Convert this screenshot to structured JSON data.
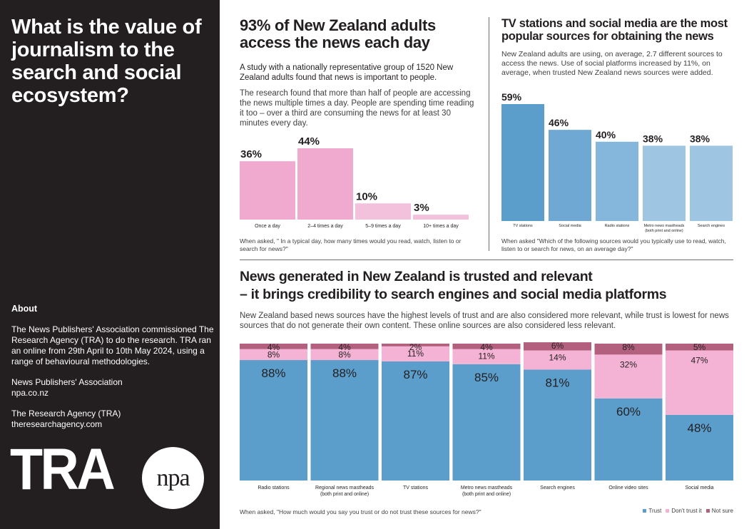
{
  "sidebar": {
    "title": "What is the value of journalism to the search and social ecosystem?",
    "about_heading": "About",
    "about_text": "The News Publishers' Association commissioned The Research Agency (TRA) to do the research. TRA ran an online from 29th April to 10th May 2024, using a range of behavioural methodologies.",
    "org1_name": "News Publishers' Association",
    "org1_url": "npa.co.nz",
    "org2_name": "The Research Agency (TRA)",
    "org2_url": "theresearchagency.com",
    "logo_tra": "TRA",
    "logo_npa": "npa"
  },
  "section1": {
    "title": "93% of New Zealand adults access the news each day",
    "lead": "A study with a nationally representative group of 1520 New Zealand adults found that news is important to people.",
    "body": "The research found that more than half of people are accessing the news multiple times a day. People are spending time reading it too – over a third are consuming the news for at least 30 minutes every day.",
    "note": "When asked, \" In a typical day, how many times would you read, watch, listen to or search for news?\""
  },
  "section2": {
    "title": "TV stations and social media are the most popular sources for obtaining the news",
    "body": "New Zealand adults are using, on average, 2.7 different sources to access the news. Use of social platforms increased by 11%, on average, when trusted New Zealand news sources were added.",
    "note": "When asked \"Which of the following sources would you typically use to read, watch, listen to or search for news, on an average day?\""
  },
  "section3": {
    "title_line1": "News generated in New Zealand is trusted and relevant",
    "title_line2": "– it brings credibility to search engines and social media platforms",
    "body": "New Zealand based news sources have the highest levels of trust and are also considered more relevant, while trust is lowest for news sources that do not generate their own content. These online sources are also considered less relevant.",
    "note": "When asked, \"How much would you say you trust or do not trust these sources for news?\""
  },
  "colors": {
    "dark": "#231f20",
    "pink1": "#f0a9cf",
    "pink2": "#f4c1dd",
    "blue1": "#5b9dcb",
    "blue2": "#9ec6e3",
    "trust": "#5b9dcb",
    "dont_trust": "#f4b3d5",
    "not_sure": "#b3607f"
  },
  "chart_data": [
    {
      "type": "bar",
      "categories": [
        "Once a day",
        "2–4 times a day",
        "5–9 times a day",
        "10+ times a day"
      ],
      "values": [
        36,
        44,
        10,
        3
      ],
      "value_labels": [
        "36%",
        "44%",
        "10%",
        "3%"
      ],
      "ylim": [
        0,
        44
      ]
    },
    {
      "type": "bar",
      "categories": [
        "TV stations",
        "Social media",
        "Radio stations",
        "Metro news mastheads (both print and online)",
        "Search engines"
      ],
      "values": [
        59,
        46,
        40,
        38,
        38
      ],
      "value_labels": [
        "59%",
        "46%",
        "40%",
        "38%",
        "38%"
      ],
      "ylim": [
        0,
        59
      ]
    },
    {
      "type": "bar",
      "stacked": true,
      "categories": [
        "Radio stations",
        "Regional news mastheads (both print and online)",
        "TV stations",
        "Metro news mastheads (both print and online)",
        "Search engines",
        "Online video sites",
        "Social media"
      ],
      "series": [
        {
          "name": "Trust",
          "values": [
            88,
            88,
            87,
            85,
            81,
            60,
            48
          ],
          "labels": [
            "88%",
            "88%",
            "87%",
            "85%",
            "81%",
            "60%",
            "48%"
          ]
        },
        {
          "name": "Don't trust it",
          "values": [
            8,
            8,
            11,
            11,
            14,
            32,
            47
          ],
          "labels": [
            "8%",
            "8%",
            "11%",
            "11%",
            "14%",
            "32%",
            "47%"
          ]
        },
        {
          "name": "Not sure",
          "values": [
            4,
            4,
            2,
            4,
            6,
            8,
            5
          ],
          "labels": [
            "4%",
            "4%",
            "2%",
            "4%",
            "6%",
            "8%",
            "5%"
          ]
        }
      ],
      "legend": "bottom-right"
    }
  ]
}
